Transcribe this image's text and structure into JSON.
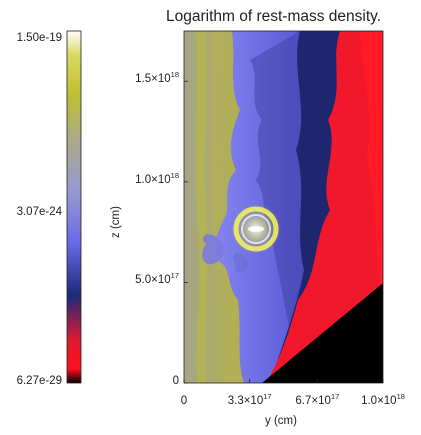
{
  "chart_data": {
    "type": "heatmap",
    "title": "Logarithm of rest-mass density.",
    "xlabel": "y (cm)",
    "ylabel": "z (cm)",
    "xlim": [
      0,
      1e+18
    ],
    "ylim": [
      0,
      1.75e+18
    ],
    "x_ticks": [
      {
        "value": 0,
        "base": "0",
        "exp": ""
      },
      {
        "value": 3.3e+17,
        "base": "3.3×10",
        "exp": "17"
      },
      {
        "value": 6.7e+17,
        "base": "6.7×10",
        "exp": "17"
      },
      {
        "value": 1e+18,
        "base": "1.0×10",
        "exp": "18"
      }
    ],
    "y_ticks": [
      {
        "value": 0,
        "base": "0",
        "exp": ""
      },
      {
        "value": 5e+17,
        "base": "5.0×10",
        "exp": "17"
      },
      {
        "value": 1e+18,
        "base": "1.0×10",
        "exp": "18"
      },
      {
        "value": 1.5e+18,
        "base": "1.5×10",
        "exp": "18"
      }
    ],
    "colorbar": {
      "max": "1.50e-19",
      "mid": "3.07e-24",
      "min": "6.27e-29",
      "stops": [
        "#000000",
        "#ff1020",
        "#1c2a7a",
        "#7a7aff",
        "#a0a0a0",
        "#c8c820",
        "#ffffff"
      ]
    }
  }
}
